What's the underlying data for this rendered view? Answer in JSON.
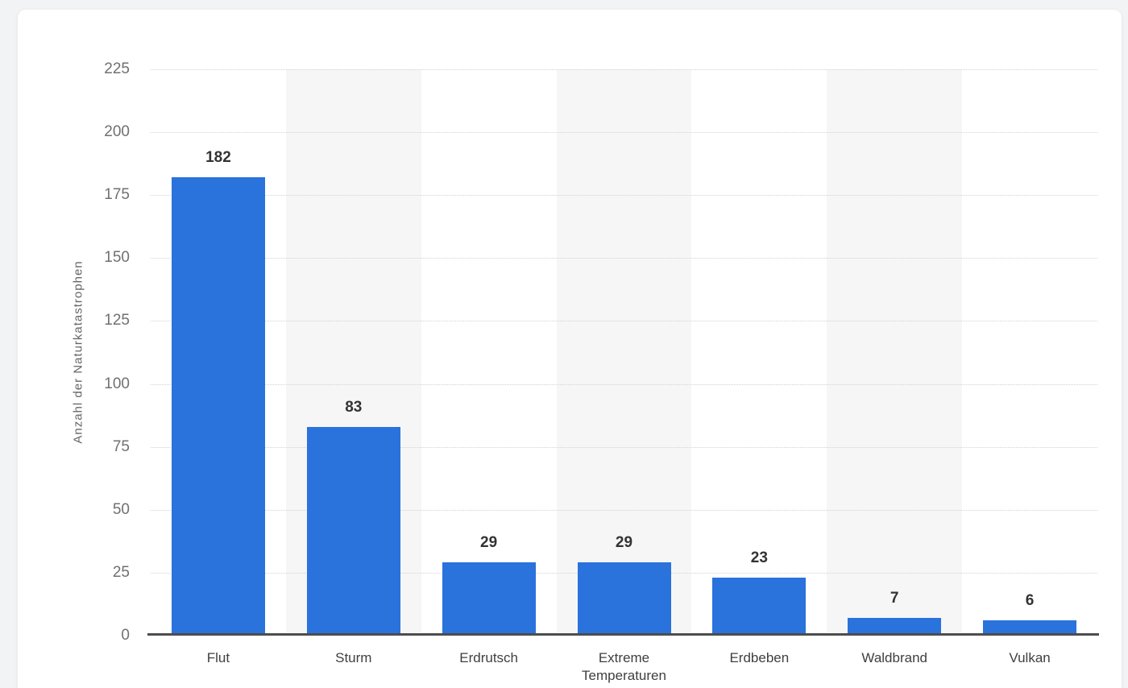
{
  "page": {
    "background_color": "#f2f3f5",
    "card_background_color": "#ffffff"
  },
  "chart_data": {
    "type": "bar",
    "categories": [
      "Flut",
      "Sturm",
      "Erdrutsch",
      "Extreme Temperaturen",
      "Erdbeben",
      "Waldbrand",
      "Vulkan"
    ],
    "values": [
      182,
      83,
      29,
      29,
      23,
      7,
      6
    ],
    "title": "",
    "xlabel": "",
    "ylabel": "Anzahl der Naturkatastrophen",
    "ylim": [
      0,
      225
    ],
    "yticks": [
      0,
      25,
      50,
      75,
      100,
      125,
      150,
      175,
      200,
      225
    ],
    "grid": "horizontal-dotted",
    "legend": "none",
    "bar_color": "#2a72dc",
    "band_color": "#f6f6f7",
    "banded_category_indexes": [
      1,
      3,
      5
    ],
    "axis_line_color": "#4d4d4d",
    "gridline_color": "#d2d2d2",
    "tick_label_color": "#707070",
    "category_label_color": "#3f3f3f",
    "value_label_color": "#333333"
  }
}
